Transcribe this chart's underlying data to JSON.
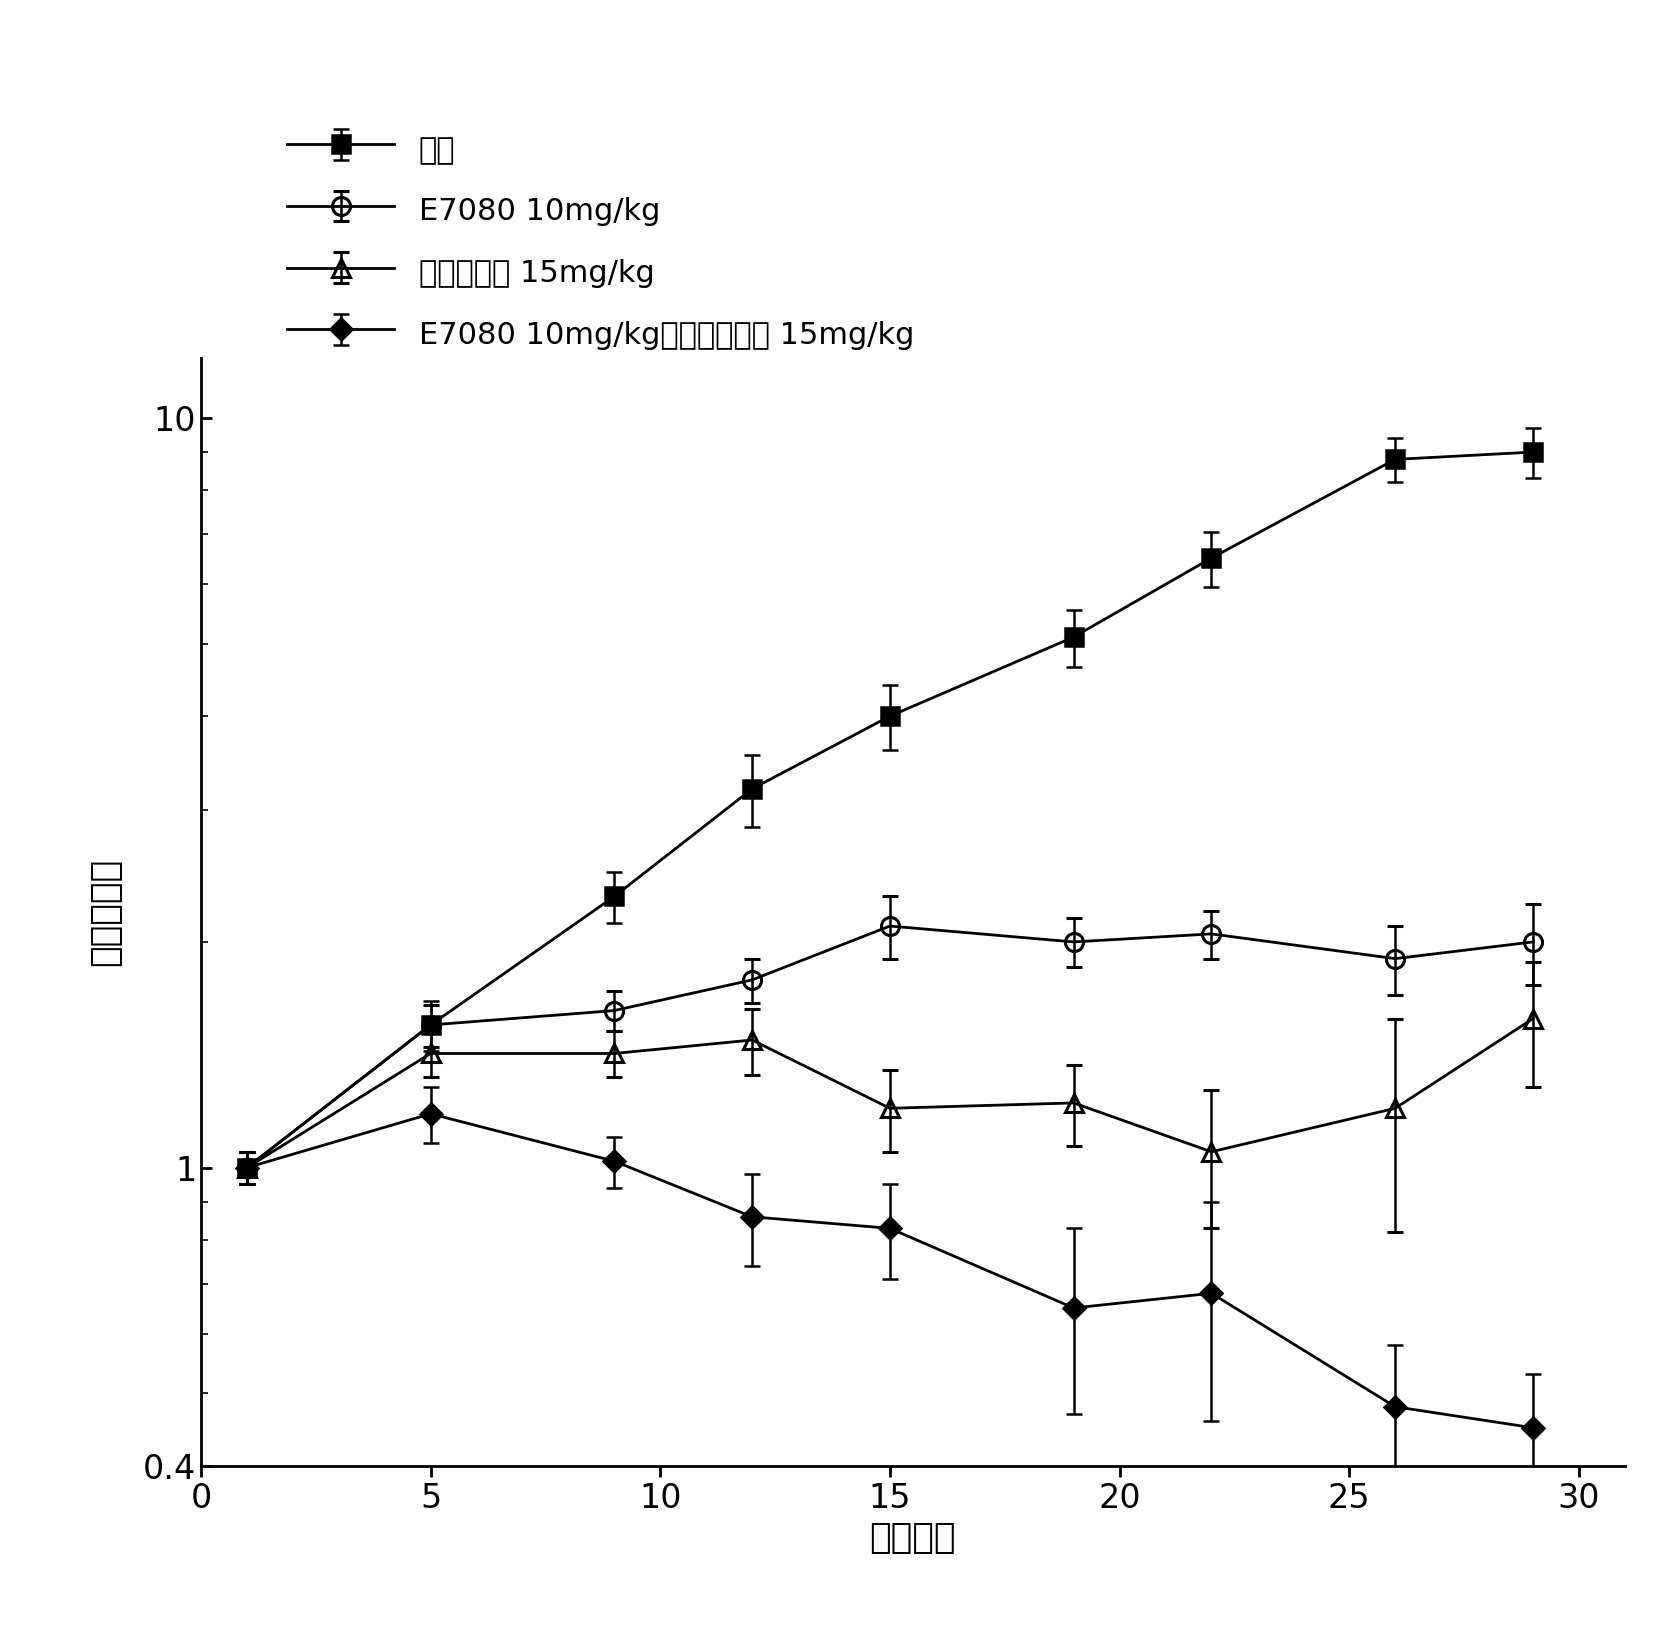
{
  "title": "",
  "xlabel": "施用日数",
  "ylabel": "比肿瘾体积",
  "background_color": "#ffffff",
  "xlim": [
    0,
    31
  ],
  "ylim": [
    0.4,
    12
  ],
  "xticks": [
    0,
    5,
    10,
    15,
    20,
    25,
    30
  ],
  "series": [
    {
      "label": "对照",
      "x": [
        1,
        5,
        9,
        12,
        15,
        19,
        22,
        26,
        29
      ],
      "y": [
        1.0,
        1.55,
        2.3,
        3.2,
        4.0,
        5.1,
        6.5,
        8.8,
        9.0
      ],
      "yerr": [
        0.05,
        0.12,
        0.18,
        0.35,
        0.4,
        0.45,
        0.55,
        0.6,
        0.7
      ],
      "marker": "s",
      "color": "#000000",
      "markersize": 13,
      "linewidth": 2,
      "fillstyle": "full"
    },
    {
      "label": "E7080 10mg/kg",
      "x": [
        1,
        5,
        9,
        12,
        15,
        19,
        22,
        26,
        29
      ],
      "y": [
        1.0,
        1.55,
        1.62,
        1.78,
        2.1,
        2.0,
        2.05,
        1.9,
        2.0
      ],
      "yerr": [
        0.05,
        0.1,
        0.1,
        0.12,
        0.2,
        0.15,
        0.15,
        0.2,
        0.25
      ],
      "marker": "o",
      "color": "#000000",
      "markersize": 13,
      "linewidth": 2,
      "fillstyle": "none"
    },
    {
      "label": "多西紫杉醇 15mg/kg",
      "x": [
        1,
        5,
        9,
        12,
        15,
        19,
        22,
        26,
        29
      ],
      "y": [
        1.0,
        1.42,
        1.42,
        1.48,
        1.2,
        1.22,
        1.05,
        1.2,
        1.58
      ],
      "yerr": [
        0.05,
        0.1,
        0.1,
        0.15,
        0.15,
        0.15,
        0.22,
        0.38,
        0.3
      ],
      "marker": "^",
      "color": "#000000",
      "markersize": 13,
      "linewidth": 2,
      "fillstyle": "none"
    },
    {
      "label": "E7080 10mg/kg＋多西紫杉醇 15mg/kg",
      "x": [
        1,
        5,
        9,
        12,
        15,
        19,
        22,
        26,
        29
      ],
      "y": [
        1.0,
        1.18,
        1.02,
        0.86,
        0.83,
        0.65,
        0.68,
        0.48,
        0.45
      ],
      "yerr": [
        0.05,
        0.1,
        0.08,
        0.12,
        0.12,
        0.18,
        0.22,
        0.1,
        0.08
      ],
      "marker": "D",
      "color": "#000000",
      "markersize": 11,
      "linewidth": 2,
      "fillstyle": "full"
    }
  ],
  "legend_fontsize": 22,
  "axis_fontsize": 26,
  "tick_fontsize": 24
}
